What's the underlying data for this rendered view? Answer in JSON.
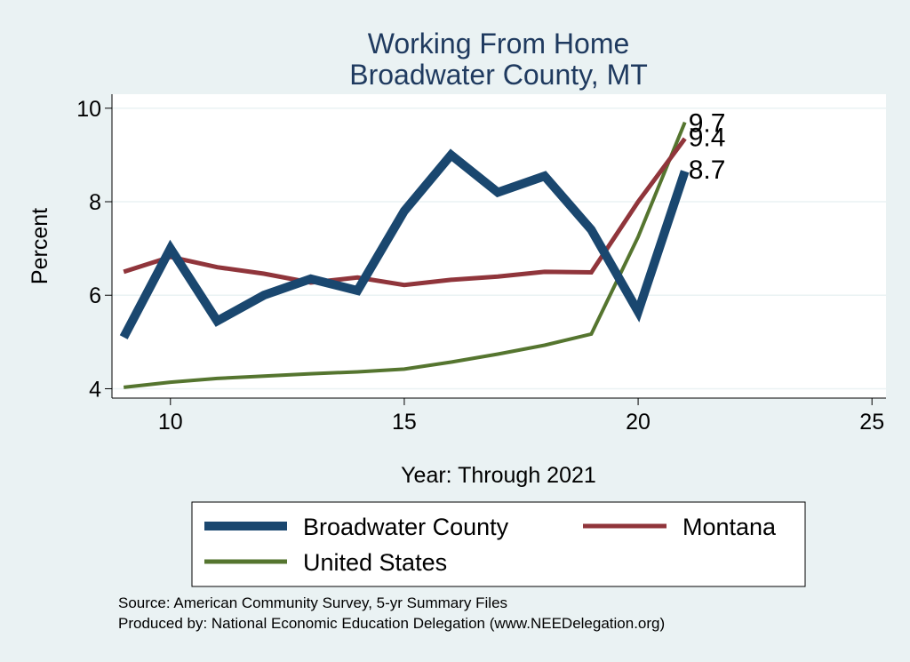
{
  "chart_data": {
    "type": "line",
    "title": [
      "Working From Home",
      "Broadwater County, MT"
    ],
    "xlabel": "Year: Through 2021",
    "ylabel": "Percent",
    "xlim": [
      8.75,
      25.3
    ],
    "ylim": [
      3.8,
      10.3
    ],
    "xticks": [
      10,
      15,
      20,
      25
    ],
    "yticks": [
      4,
      6,
      8,
      10
    ],
    "grid": true,
    "legend_position": "bottom",
    "series": [
      {
        "name": "Broadwater County",
        "color": "#1a476f",
        "x": [
          9,
          10,
          11,
          12,
          13,
          14,
          15,
          16,
          17,
          18,
          19,
          20,
          21
        ],
        "values": [
          5.1,
          7.0,
          5.45,
          6.0,
          6.35,
          6.1,
          7.8,
          9.0,
          8.2,
          8.55,
          7.4,
          5.65,
          8.65
        ],
        "end_label": "8.7"
      },
      {
        "name": "Montana",
        "color": "#90353b",
        "x": [
          9,
          10,
          11,
          12,
          13,
          14,
          15,
          16,
          17,
          18,
          19,
          20,
          21
        ],
        "values": [
          6.5,
          6.82,
          6.6,
          6.46,
          6.27,
          6.38,
          6.22,
          6.33,
          6.4,
          6.5,
          6.49,
          8.0,
          9.35
        ],
        "end_label": "9.4"
      },
      {
        "name": "United States",
        "color": "#55752f",
        "x": [
          9,
          10,
          11,
          12,
          13,
          14,
          15,
          16,
          17,
          18,
          19,
          20,
          21
        ],
        "values": [
          4.03,
          4.14,
          4.22,
          4.27,
          4.32,
          4.36,
          4.42,
          4.57,
          4.74,
          4.93,
          5.17,
          7.25,
          9.7
        ],
        "end_label": "9.7"
      }
    ],
    "source_lines": [
      "Source: American Community Survey, 5-yr Summary Files",
      "Produced by: National Economic Education Delegation (www.NEEDelegation.org)"
    ]
  }
}
